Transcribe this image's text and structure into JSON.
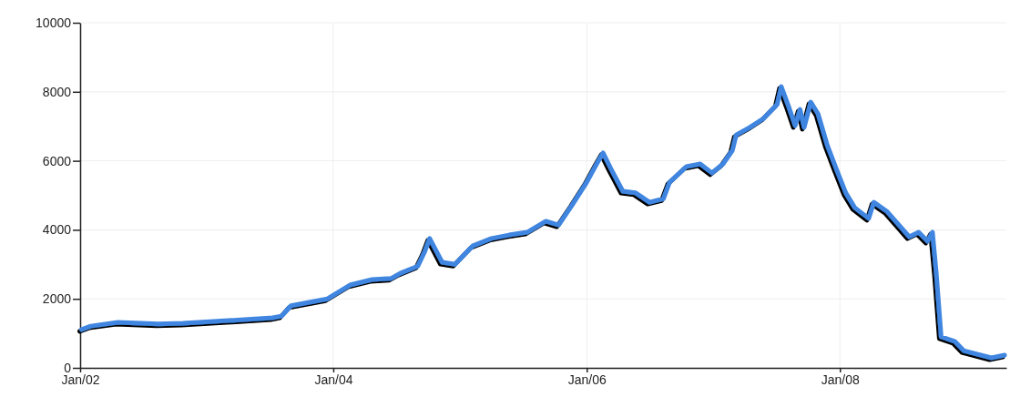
{
  "chart_data": {
    "type": "line",
    "x": [
      "2002-01-05",
      "2002-02-01",
      "2002-04-20",
      "2002-08-15",
      "2002-10-25",
      "2003-03-05",
      "2003-07-10",
      "2003-08-05",
      "2003-09-01",
      "2003-12-15",
      "2004-01-10",
      "2004-02-18",
      "2004-04-22",
      "2004-06-15",
      "2004-07-12",
      "2004-09-01",
      "2004-09-20",
      "2004-10-05",
      "2004-11-10",
      "2004-12-17",
      "2005-02-07",
      "2005-04-01",
      "2005-05-22",
      "2005-07-13",
      "2005-09-05",
      "2005-10-12",
      "2005-11-20",
      "2006-01-01",
      "2006-01-27",
      "2006-02-17",
      "2006-03-11",
      "2006-04-15",
      "2006-05-22",
      "2006-07-01",
      "2006-08-10",
      "2006-08-28",
      "2006-10-15",
      "2006-11-24",
      "2006-12-28",
      "2007-01-29",
      "2007-02-25",
      "2007-03-08",
      "2007-04-16",
      "2007-05-26",
      "2007-07-04",
      "2007-07-16",
      "2007-08-07",
      "2007-08-25",
      "2007-09-08",
      "2007-09-20",
      "2007-10-09",
      "2007-10-30",
      "2007-11-26",
      "2007-12-21",
      "2008-01-18",
      "2008-02-13",
      "2008-03-24",
      "2008-04-08",
      "2008-05-15",
      "2008-07-19",
      "2008-08-15",
      "2008-09-10",
      "2008-09-24",
      "2008-10-05",
      "2008-10-19",
      "2008-11-27",
      "2008-12-23",
      "2009-03-13",
      "2009-04-20"
    ],
    "series": [
      {
        "color": "#3f86e0",
        "values": [
          1110,
          1210,
          1320,
          1270,
          1290,
          1370,
          1450,
          1500,
          1800,
          2000,
          2160,
          2400,
          2560,
          2590,
          2740,
          2950,
          3350,
          3750,
          3060,
          3000,
          3540,
          3750,
          3850,
          3930,
          4250,
          4140,
          4720,
          5380,
          5860,
          6230,
          5780,
          5120,
          5070,
          4800,
          4900,
          5380,
          5830,
          5910,
          5650,
          5910,
          6300,
          6750,
          6970,
          7230,
          7630,
          8150,
          7550,
          7020,
          7490,
          6970,
          7700,
          7360,
          6440,
          5780,
          5070,
          4640,
          4330,
          4800,
          4540,
          3800,
          3930,
          3670,
          3930,
          2740,
          900,
          770,
          500,
          290,
          370
        ]
      }
    ],
    "xlim": [
      "2002-01-01",
      "2009-04-25"
    ],
    "xticks": [
      {
        "value": "2002-01-01",
        "label": "Jan/02"
      },
      {
        "value": "2004-01-01",
        "label": "Jan/04"
      },
      {
        "value": "2006-01-01",
        "label": "Jan/06"
      },
      {
        "value": "2008-01-01",
        "label": "Jan/08"
      }
    ],
    "ylim": [
      0,
      10000
    ],
    "yticks": [
      0,
      2000,
      4000,
      6000,
      8000,
      10000
    ],
    "grid": true,
    "marker": "none",
    "line_style": "solid"
  }
}
